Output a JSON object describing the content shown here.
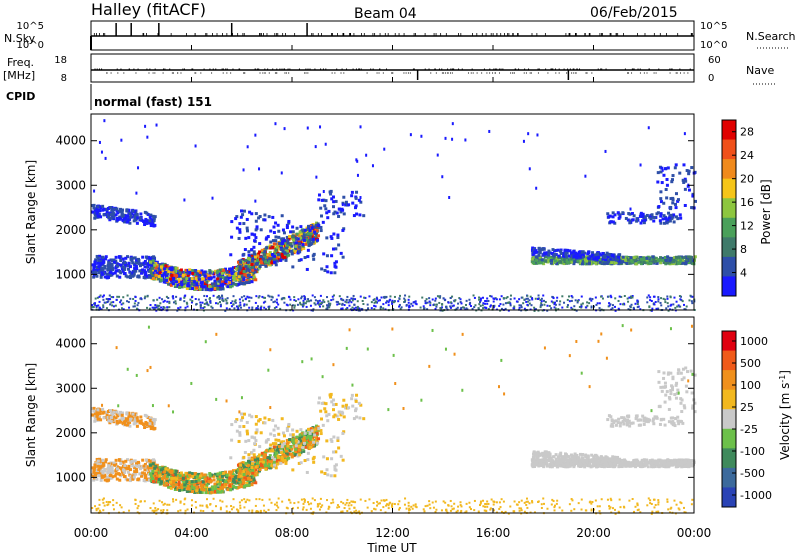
{
  "header": {
    "title": "Halley (fitACF)",
    "beam": "Beam 04",
    "date": "06/Feb/2015"
  },
  "top_panels": {
    "nsky_label": "N.Sky",
    "nsky_ticks": [
      "10^5",
      "10^0"
    ],
    "nsearch_label": "N.Search",
    "nsearch_ticks": [
      "10^5",
      "10^0"
    ],
    "freq_label": "Freq.",
    "freq_unit": "[MHz]",
    "freq_ticks": [
      "18",
      "8"
    ],
    "nave_label": "Nave",
    "nave_ticks": [
      "60",
      "0"
    ],
    "cpid_label": "CPID",
    "cpid_value": "normal (fast) 151"
  },
  "colors": {
    "power_scale": [
      "#1a1aff",
      "#2e4fa8",
      "#3f7a6a",
      "#4aa05a",
      "#8dc63f",
      "#f5c518",
      "#f08a1c",
      "#f0501a",
      "#e00000"
    ],
    "velocity_scale": [
      "#2a43b5",
      "#3c6a9c",
      "#3f8a5c",
      "#6cc04a",
      "#c9c9c9",
      "#f2b81f",
      "#f0901c",
      "#f05a1a",
      "#e00010"
    ]
  },
  "chart_data": [
    {
      "type": "heatmap",
      "name": "power",
      "ylabel": "Slant Range [km]",
      "yticks": [
        "1000",
        "2000",
        "3000",
        "4000"
      ],
      "ylim": [
        200,
        4600
      ],
      "xlim": [
        0,
        24
      ],
      "colorbar_label": "Power [dB]",
      "colorbar_ticks": [
        "4",
        "8",
        "12",
        "16",
        "20",
        "24",
        "28"
      ],
      "colorbar_range": [
        0,
        30
      ]
    },
    {
      "type": "heatmap",
      "name": "velocity",
      "ylabel": "Slant Range [km]",
      "yticks": [
        "1000",
        "2000",
        "3000",
        "4000"
      ],
      "ylim": [
        200,
        4600
      ],
      "xlim": [
        0,
        24
      ],
      "colorbar_label": "Velocity [m s",
      "colorbar_sup": "-1",
      "colorbar_close": "]",
      "colorbar_ticks": [
        "1000",
        "500",
        "100",
        "25",
        "-25",
        "-100",
        "-500",
        "-1000"
      ]
    }
  ],
  "xaxis": {
    "ticks": [
      "00:00",
      "04:00",
      "08:00",
      "12:00",
      "16:00",
      "20:00",
      "00:00"
    ],
    "label": "Time UT"
  }
}
